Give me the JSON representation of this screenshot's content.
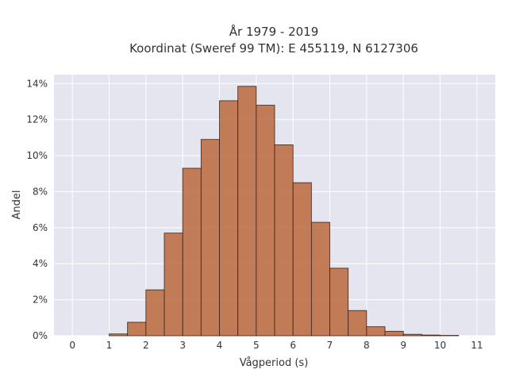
{
  "chart_data": {
    "type": "bar",
    "title_lines": [
      "År 1979 - 2019",
      "Koordinat (Sweref 99 TM): E 455119, N 6127306"
    ],
    "xlabel": "Vågperiod (s)",
    "ylabel": "Andel",
    "x_ticks": [
      "0",
      "1",
      "2",
      "3",
      "4",
      "5",
      "6",
      "7",
      "8",
      "9",
      "10",
      "11"
    ],
    "y_ticks": [
      "0%",
      "2%",
      "4%",
      "6%",
      "8%",
      "10%",
      "12%",
      "14%"
    ],
    "xlim": [
      -0.5,
      11.5
    ],
    "ylim": [
      0,
      14.5
    ],
    "bin_width": 0.5,
    "grid": true,
    "bins": [
      {
        "x0": 1.0,
        "value": 0.1
      },
      {
        "x0": 1.5,
        "value": 0.75
      },
      {
        "x0": 2.0,
        "value": 2.55
      },
      {
        "x0": 2.5,
        "value": 5.7
      },
      {
        "x0": 3.0,
        "value": 9.3
      },
      {
        "x0": 3.5,
        "value": 10.9
      },
      {
        "x0": 4.0,
        "value": 13.05
      },
      {
        "x0": 4.5,
        "value": 13.85
      },
      {
        "x0": 5.0,
        "value": 12.8
      },
      {
        "x0": 5.5,
        "value": 10.6
      },
      {
        "x0": 6.0,
        "value": 8.5
      },
      {
        "x0": 6.5,
        "value": 6.3
      },
      {
        "x0": 7.0,
        "value": 3.75
      },
      {
        "x0": 7.5,
        "value": 1.4
      },
      {
        "x0": 8.0,
        "value": 0.5
      },
      {
        "x0": 8.5,
        "value": 0.25
      },
      {
        "x0": 9.0,
        "value": 0.08
      },
      {
        "x0": 9.5,
        "value": 0.04
      },
      {
        "x0": 10.0,
        "value": 0.02
      }
    ],
    "colors": {
      "bar_fill": "#b96336",
      "bar_edge": "#3a2418",
      "plot_bg": "#e5e5ef",
      "grid": "#ffffff"
    }
  }
}
